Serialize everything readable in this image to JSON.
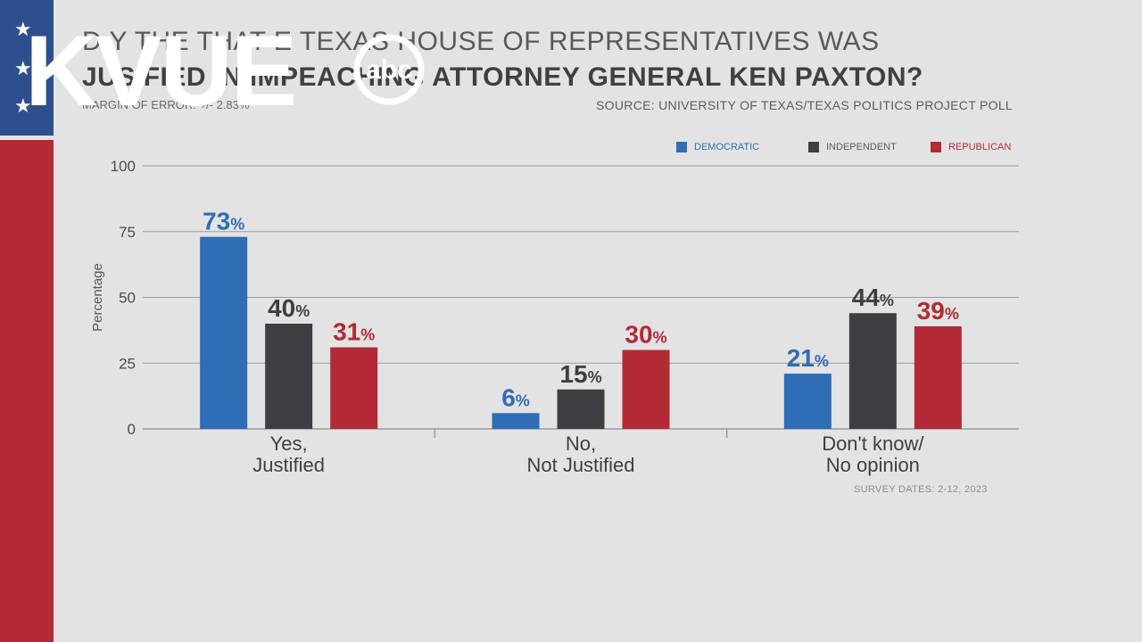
{
  "colors": {
    "democratic": "#2f6db5",
    "independent": "#3e3f43",
    "republican": "#b22a36",
    "grid": "#9a9b9e"
  },
  "headline": {
    "line1": "D     Y      THE      THAT      E TEXAS HOUSE OF REPRESENTATIVES WAS",
    "line2": "JUS     FIED IN IMPEACHING ATTORNEY GENERAL KEN PAXTON?"
  },
  "margin_of_error": "MARGIN OF ERROR: +/- 2.83%",
  "source": "SOURCE: UNIVERSITY OF TEXAS/TEXAS POLITICS PROJECT POLL",
  "survey_dates": "SURVEY DATES: 2-12, 2023",
  "logo": {
    "text": "KVUE",
    "network": "abc"
  },
  "legend": {
    "democratic": "DEMOCRATIC",
    "independent": "INDEPENDENT",
    "republican": "REPUBLICAN"
  },
  "chart_data": {
    "type": "bar",
    "categories": [
      "Yes,\nJustified",
      "No,\nNot Justified",
      "Don't know/\nNo opinion"
    ],
    "series": [
      {
        "name": "DEMOCRATIC",
        "values": [
          73,
          6,
          21
        ]
      },
      {
        "name": "INDEPENDENT",
        "values": [
          40,
          15,
          44
        ]
      },
      {
        "name": "REPUBLICAN",
        "values": [
          31,
          30,
          39
        ]
      }
    ],
    "value_labels": [
      [
        "73",
        "6",
        "21"
      ],
      [
        "40",
        "15",
        "44"
      ],
      [
        "31",
        "30",
        "39"
      ]
    ],
    "ylabel": "Percentage",
    "yticks": [
      0,
      25,
      50,
      75,
      100
    ],
    "ylim": [
      0,
      100
    ],
    "grid": true,
    "legend_position": "top-right"
  }
}
